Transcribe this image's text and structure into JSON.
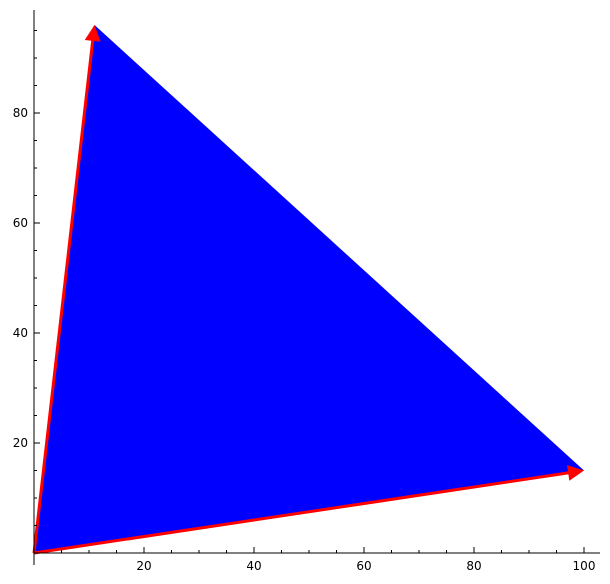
{
  "chart_data": {
    "type": "polygon-with-vectors",
    "title": "",
    "xlabel": "",
    "ylabel": "",
    "xlim": [
      0,
      102
    ],
    "ylim": [
      0,
      98
    ],
    "grid": false,
    "x_ticks": [
      20,
      40,
      60,
      80,
      100
    ],
    "y_ticks": [
      20,
      40,
      60,
      80
    ],
    "polygon": {
      "points": [
        [
          0,
          0
        ],
        [
          100,
          15
        ],
        [
          11,
          96
        ]
      ],
      "color": "#0000ff"
    },
    "vectors": [
      {
        "from": [
          0,
          0
        ],
        "to": [
          11,
          96
        ],
        "color": "#ff0000"
      },
      {
        "from": [
          0,
          0
        ],
        "to": [
          100,
          15
        ],
        "color": "#ff0000"
      }
    ]
  }
}
